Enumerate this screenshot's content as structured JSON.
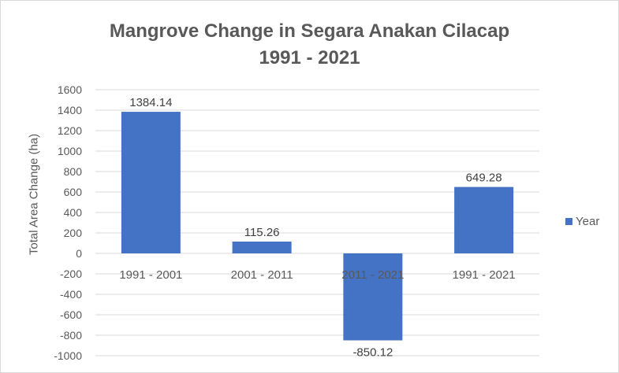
{
  "chart_data": {
    "type": "bar",
    "title_line1": "Mangrove Change in Segara Anakan Cilacap",
    "title_line2": "1991 - 2021",
    "xlabel": "",
    "ylabel": "Total Area Change  (ha)",
    "ylim": [
      -1000,
      1600
    ],
    "ytick_step": 200,
    "categories": [
      "1991 - 2001",
      "2001 - 2011",
      "2011 - 2021",
      "1991 - 2021"
    ],
    "series": [
      {
        "name": "Year",
        "values": [
          1384.14,
          115.26,
          -850.12,
          649.28
        ]
      }
    ],
    "data_labels": [
      "1384.14",
      "115.26",
      "-850.12",
      "649.28"
    ],
    "grid": true,
    "legend_position": "right",
    "bar_color": "#4472c4"
  }
}
